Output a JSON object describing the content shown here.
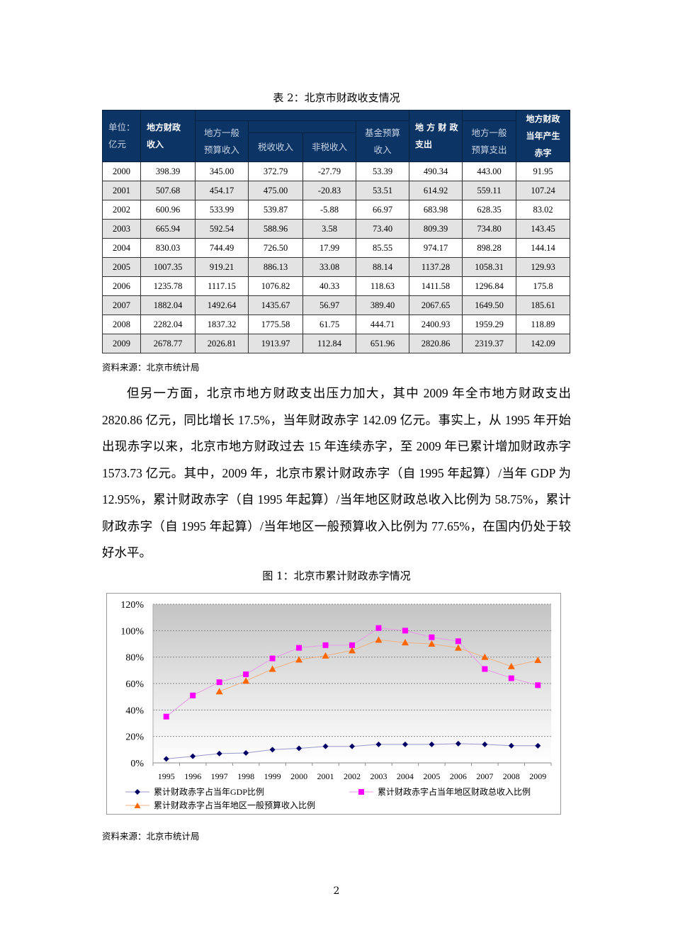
{
  "table": {
    "caption": "表 2：北京市财政收支情况",
    "headers": {
      "unit_line1": "单位：",
      "unit_line2": "亿元",
      "local_revenue_line1": "地方财政",
      "local_revenue_line2": "收入",
      "general_budget_revenue_line1": "地方一般",
      "general_budget_revenue_line2": "预算收入",
      "tax_revenue": "税收收入",
      "nontax_revenue": "非税收入",
      "fund_budget_revenue_line1": "基金预算",
      "fund_budget_revenue_line2": "收入",
      "local_expenditure_line1": "地 方 财 政",
      "local_expenditure_line2": "支出",
      "general_budget_expenditure_line1": "地方一般",
      "general_budget_expenditure_line2": "预算支出",
      "deficit_line1": "地方财政",
      "deficit_line2": "当年产生",
      "deficit_line3": "赤字"
    },
    "rows": [
      [
        "2000",
        "398.39",
        "345.00",
        "372.79",
        "-27.79",
        "53.39",
        "490.34",
        "443.00",
        "91.95"
      ],
      [
        "2001",
        "507.68",
        "454.17",
        "475.00",
        "-20.83",
        "53.51",
        "614.92",
        "559.11",
        "107.24"
      ],
      [
        "2002",
        "600.96",
        "533.99",
        "539.87",
        "-5.88",
        "66.97",
        "683.98",
        "628.35",
        "83.02"
      ],
      [
        "2003",
        "665.94",
        "592.54",
        "588.96",
        "3.58",
        "73.40",
        "809.39",
        "734.80",
        "143.45"
      ],
      [
        "2004",
        "830.03",
        "744.49",
        "726.50",
        "17.99",
        "85.55",
        "974.17",
        "898.28",
        "144.14"
      ],
      [
        "2005",
        "1007.35",
        "919.21",
        "886.13",
        "33.08",
        "88.14",
        "1137.28",
        "1058.31",
        "129.93"
      ],
      [
        "2006",
        "1235.78",
        "1117.15",
        "1076.82",
        "40.33",
        "118.63",
        "1411.58",
        "1296.84",
        "175.8"
      ],
      [
        "2007",
        "1882.04",
        "1492.64",
        "1435.67",
        "56.97",
        "389.40",
        "2067.65",
        "1649.50",
        "185.61"
      ],
      [
        "2008",
        "2282.04",
        "1837.32",
        "1775.58",
        "61.75",
        "444.71",
        "2400.93",
        "1959.29",
        "118.89"
      ],
      [
        "2009",
        "2678.77",
        "2026.81",
        "1913.97",
        "112.84",
        "651.96",
        "2820.86",
        "2319.37",
        "142.09"
      ]
    ],
    "source": "资料来源：北京市统计局",
    "colors": {
      "header_bg": "#0c3465",
      "alt_row_bg": "#e3e3e3"
    }
  },
  "body": {
    "paragraph": "但另一方面，北京市地方财政支出压力加大，其中 2009 年全市地方财政支出 2820.86 亿元，同比增长 17.5%，当年财政赤字 142.09 亿元。事实上，从 1995 年开始出现赤字以来，北京市地方财政过去 15 年连续赤字，至 2009 年已累计增加财政赤字 1573.73 亿元。其中，2009 年，北京市累计财政赤字（自 1995 年起算）/当年 GDP 为 12.95%，累计财政赤字（自 1995 年起算）/当年地区财政总收入比例为 58.75%，累计财政赤字（自 1995 年起算）/当年地区一般预算收入比例为 77.65%，在国内仍处于较好水平。"
  },
  "figure": {
    "caption": "图 1：北京市累计财政赤字情况",
    "source": "资料来源：北京市统计局"
  },
  "chart_data": {
    "type": "line",
    "title": "图 1：北京市累计财政赤字情况",
    "xlabel": "",
    "ylabel": "",
    "x": [
      "1995",
      "1996",
      "1997",
      "1998",
      "1999",
      "2000",
      "2001",
      "2002",
      "2003",
      "2004",
      "2005",
      "2006",
      "2007",
      "2008",
      "2009"
    ],
    "yticks": [
      "0%",
      "20%",
      "40%",
      "60%",
      "80%",
      "100%",
      "120%"
    ],
    "ylim": [
      0,
      120
    ],
    "grid": true,
    "legend_position": "bottom",
    "series": [
      {
        "name": "累计财政赤字占当年GDP比例",
        "marker": "diamond",
        "color": "#000066",
        "line_color": "#9999cc",
        "values": [
          3,
          5,
          7,
          7.5,
          10,
          11,
          12.5,
          12.5,
          14,
          14,
          14,
          14.5,
          14,
          13,
          12.95
        ]
      },
      {
        "name": "累计财政赤字占当年地区财政总收入比例",
        "marker": "square",
        "color": "#ff00ff",
        "line_color": "#e699e6",
        "values": [
          35,
          51,
          61,
          67,
          79,
          87,
          89,
          89,
          102,
          100,
          95,
          92,
          71,
          64,
          58.75
        ]
      },
      {
        "name": "累计财政赤字占当年地区一般预算收入比例",
        "marker": "triangle",
        "color": "#ff6600",
        "line_color": "#f0b080",
        "values": [
          null,
          null,
          54,
          62,
          71,
          78,
          81,
          85,
          93,
          91,
          90,
          87,
          80,
          73,
          77.65
        ]
      }
    ]
  },
  "page": {
    "number": "2"
  }
}
